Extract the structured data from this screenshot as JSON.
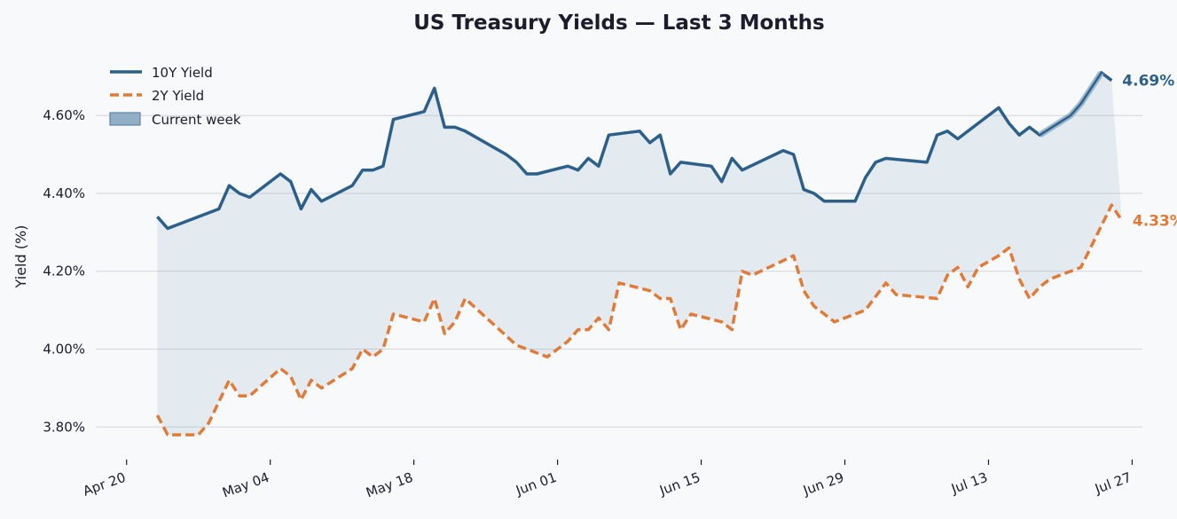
{
  "chart_data": {
    "type": "line",
    "title": "US Treasury Yields — Last 3 Months",
    "xlabel": "",
    "ylabel": "Yield (%)",
    "ylim": [
      3.73,
      4.76
    ],
    "y_ticks": [
      3.8,
      4.0,
      4.2,
      4.4,
      4.6
    ],
    "y_tick_labels": [
      "3.80%",
      "4.00%",
      "4.20%",
      "4.40%",
      "4.60%"
    ],
    "x_ticks": [
      "2025-04-20",
      "2025-05-04",
      "2025-05-18",
      "2025-06-01",
      "2025-06-15",
      "2025-06-29",
      "2025-07-13",
      "2025-07-27"
    ],
    "x_tick_labels": [
      "Apr 20",
      "May 04",
      "May 18",
      "Jun 01",
      "Jun 15",
      "Jun 29",
      "Jul 13",
      "Jul 27"
    ],
    "x_range": [
      "2025-04-17",
      "2025-07-28"
    ],
    "grid": "horizontal",
    "legend_position": "top-left",
    "legend": [
      "10Y Yield",
      "2Y Yield",
      "Current week"
    ],
    "highlight": {
      "label": "Current week",
      "start": "2025-07-18",
      "end": "2025-07-24"
    },
    "series": [
      {
        "name": "10Y Yield",
        "color": "#2c5f8a",
        "style": "solid",
        "end_label": "4.69%",
        "points": [
          [
            "2025-04-23",
            4.34
          ],
          [
            "2025-04-24",
            4.31
          ],
          [
            "2025-04-28",
            4.35
          ],
          [
            "2025-04-29",
            4.36
          ],
          [
            "2025-04-30",
            4.42
          ],
          [
            "2025-05-01",
            4.4
          ],
          [
            "2025-05-02",
            4.39
          ],
          [
            "2025-05-05",
            4.45
          ],
          [
            "2025-05-06",
            4.43
          ],
          [
            "2025-05-07",
            4.36
          ],
          [
            "2025-05-08",
            4.41
          ],
          [
            "2025-05-09",
            4.38
          ],
          [
            "2025-05-12",
            4.42
          ],
          [
            "2025-05-13",
            4.46
          ],
          [
            "2025-05-14",
            4.46
          ],
          [
            "2025-05-15",
            4.47
          ],
          [
            "2025-05-16",
            4.59
          ],
          [
            "2025-05-19",
            4.61
          ],
          [
            "2025-05-20",
            4.67
          ],
          [
            "2025-05-21",
            4.57
          ],
          [
            "2025-05-22",
            4.57
          ],
          [
            "2025-05-23",
            4.56
          ],
          [
            "2025-05-27",
            4.5
          ],
          [
            "2025-05-28",
            4.48
          ],
          [
            "2025-05-29",
            4.45
          ],
          [
            "2025-05-30",
            4.45
          ],
          [
            "2025-06-02",
            4.47
          ],
          [
            "2025-06-03",
            4.46
          ],
          [
            "2025-06-04",
            4.49
          ],
          [
            "2025-06-05",
            4.47
          ],
          [
            "2025-06-06",
            4.55
          ],
          [
            "2025-06-09",
            4.56
          ],
          [
            "2025-06-10",
            4.53
          ],
          [
            "2025-06-11",
            4.55
          ],
          [
            "2025-06-12",
            4.45
          ],
          [
            "2025-06-13",
            4.48
          ],
          [
            "2025-06-16",
            4.47
          ],
          [
            "2025-06-17",
            4.43
          ],
          [
            "2025-06-18",
            4.49
          ],
          [
            "2025-06-19",
            4.46
          ],
          [
            "2025-06-23",
            4.51
          ],
          [
            "2025-06-24",
            4.5
          ],
          [
            "2025-06-25",
            4.41
          ],
          [
            "2025-06-26",
            4.4
          ],
          [
            "2025-06-27",
            4.38
          ],
          [
            "2025-06-30",
            4.38
          ],
          [
            "2025-07-01",
            4.44
          ],
          [
            "2025-07-02",
            4.48
          ],
          [
            "2025-07-03",
            4.49
          ],
          [
            "2025-07-07",
            4.48
          ],
          [
            "2025-07-08",
            4.55
          ],
          [
            "2025-07-09",
            4.56
          ],
          [
            "2025-07-10",
            4.54
          ],
          [
            "2025-07-14",
            4.62
          ],
          [
            "2025-07-15",
            4.58
          ],
          [
            "2025-07-16",
            4.55
          ],
          [
            "2025-07-17",
            4.57
          ],
          [
            "2025-07-18",
            4.55
          ],
          [
            "2025-07-21",
            4.6
          ],
          [
            "2025-07-22",
            4.63
          ],
          [
            "2025-07-24",
            4.71
          ],
          [
            "2025-07-25",
            4.69
          ]
        ]
      },
      {
        "name": "2Y Yield",
        "color": "#e07b39",
        "style": "dashed",
        "end_label": "4.33%",
        "points": [
          [
            "2025-04-23",
            3.83
          ],
          [
            "2025-04-24",
            3.78
          ],
          [
            "2025-04-27",
            3.78
          ],
          [
            "2025-04-28",
            3.81
          ],
          [
            "2025-04-30",
            3.92
          ],
          [
            "2025-05-01",
            3.88
          ],
          [
            "2025-05-02",
            3.88
          ],
          [
            "2025-05-05",
            3.95
          ],
          [
            "2025-05-06",
            3.93
          ],
          [
            "2025-05-07",
            3.87
          ],
          [
            "2025-05-08",
            3.92
          ],
          [
            "2025-05-09",
            3.9
          ],
          [
            "2025-05-12",
            3.95
          ],
          [
            "2025-05-13",
            4.0
          ],
          [
            "2025-05-14",
            3.98
          ],
          [
            "2025-05-15",
            4.0
          ],
          [
            "2025-05-16",
            4.09
          ],
          [
            "2025-05-19",
            4.07
          ],
          [
            "2025-05-20",
            4.13
          ],
          [
            "2025-05-21",
            4.04
          ],
          [
            "2025-05-22",
            4.07
          ],
          [
            "2025-05-23",
            4.13
          ],
          [
            "2025-05-28",
            4.01
          ],
          [
            "2025-05-30",
            3.99
          ],
          [
            "2025-05-31",
            3.98
          ],
          [
            "2025-06-02",
            4.02
          ],
          [
            "2025-06-03",
            4.05
          ],
          [
            "2025-06-04",
            4.05
          ],
          [
            "2025-06-05",
            4.08
          ],
          [
            "2025-06-06",
            4.05
          ],
          [
            "2025-06-07",
            4.17
          ],
          [
            "2025-06-10",
            4.15
          ],
          [
            "2025-06-11",
            4.13
          ],
          [
            "2025-06-12",
            4.13
          ],
          [
            "2025-06-13",
            4.05
          ],
          [
            "2025-06-14",
            4.09
          ],
          [
            "2025-06-17",
            4.07
          ],
          [
            "2025-06-18",
            4.05
          ],
          [
            "2025-06-19",
            4.2
          ],
          [
            "2025-06-20",
            4.19
          ],
          [
            "2025-06-24",
            4.24
          ],
          [
            "2025-06-25",
            4.15
          ],
          [
            "2025-06-26",
            4.11
          ],
          [
            "2025-06-28",
            4.07
          ],
          [
            "2025-07-01",
            4.1
          ],
          [
            "2025-07-03",
            4.17
          ],
          [
            "2025-07-04",
            4.14
          ],
          [
            "2025-07-08",
            4.13
          ],
          [
            "2025-07-09",
            4.19
          ],
          [
            "2025-07-10",
            4.21
          ],
          [
            "2025-07-11",
            4.16
          ],
          [
            "2025-07-12",
            4.21
          ],
          [
            "2025-07-14",
            4.24
          ],
          [
            "2025-07-15",
            4.26
          ],
          [
            "2025-07-16",
            4.18
          ],
          [
            "2025-07-17",
            4.13
          ],
          [
            "2025-07-18",
            4.16
          ],
          [
            "2025-07-19",
            4.18
          ],
          [
            "2025-07-22",
            4.21
          ],
          [
            "2025-07-25",
            4.37
          ],
          [
            "2025-07-26",
            4.33
          ]
        ]
      }
    ]
  }
}
